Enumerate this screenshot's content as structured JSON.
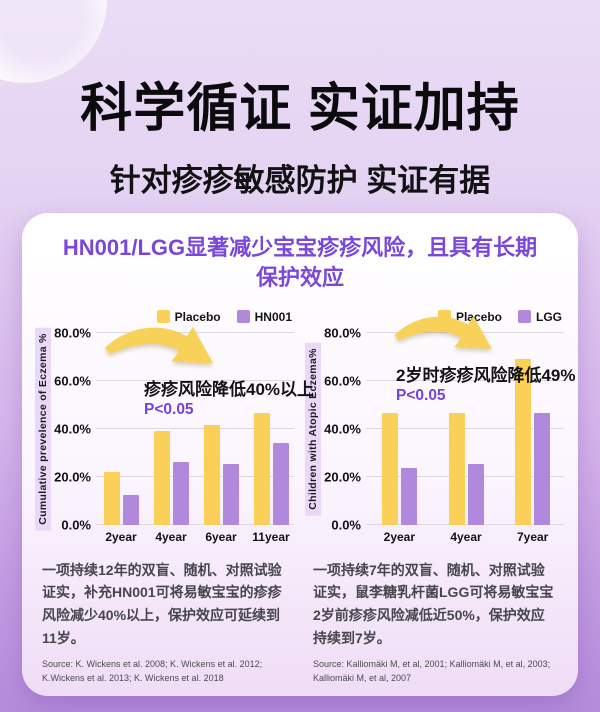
{
  "header": {
    "title": "科学循证 实证加持",
    "subtitle": "针对疹疹敏感防护 实证有据"
  },
  "card": {
    "title_line1": "HN001/LGG显著减少宝宝疹疹风险，且具有长期",
    "title_line2": "保护效应"
  },
  "chart_data": [
    {
      "type": "bar",
      "title": "",
      "ylabel": "Cumulative prevelence of Eczema %",
      "xlabel": "",
      "categories": [
        "2year",
        "4year",
        "6year",
        "11year"
      ],
      "series": [
        {
          "name": "Placebo",
          "color": "#FBD058",
          "values": [
            22,
            39,
            41.5,
            46.5
          ]
        },
        {
          "name": "HN001",
          "color": "#B089DC",
          "values": [
            12.5,
            26,
            25.5,
            34
          ]
        }
      ],
      "ylim": [
        0,
        80
      ],
      "yticks": [
        "0.0%",
        "20.0%",
        "40.0%",
        "60.0%",
        "80.0%"
      ],
      "grid": true,
      "legend_position": "top-right",
      "annotation": "疹疹风险降低40%以上",
      "pvalue": "P<0.05"
    },
    {
      "type": "bar",
      "title": "",
      "ylabel": "Children with Atopic Eczema%",
      "xlabel": "",
      "categories": [
        "2year",
        "4year",
        "7year"
      ],
      "series": [
        {
          "name": "Placebo",
          "color": "#FBD058",
          "values": [
            46.5,
            46.5,
            69
          ]
        },
        {
          "name": "LGG",
          "color": "#B089DC",
          "values": [
            23.5,
            25.5,
            46.5
          ]
        }
      ],
      "ylim": [
        0,
        80
      ],
      "yticks": [
        "0.0%",
        "20.0%",
        "40.0%",
        "60.0%",
        "80.0%"
      ],
      "grid": true,
      "legend_position": "top-right",
      "annotation": "2岁时疹疹风险降低49%",
      "pvalue": "P<0.05"
    }
  ],
  "panels": [
    {
      "description": "一项持续12年的双盲、随机、对照试验证实，补充HN001可将易敏宝宝的疹疹风险减少40%以上，保护效应可延续到11岁。",
      "source": "Source: K. Wickens et al. 2008; K. Wickens et al. 2012; K.Wickens et al. 2013; K. Wickens et al. 2018"
    },
    {
      "description": "一项持续7年的双盲、随机、对照试验证实，鼠李糖乳杆菌LGG可将易敏宝宝2岁前疹疹风险减低近50%，保护效应持续到7岁。",
      "source": "Source: Kalliomäki M, et al, 2001; Kalliomäki M, et al, 2003; Kalliomäki M, et al, 2007"
    }
  ],
  "colors": {
    "placebo_yellow": "#FBD058",
    "probiotic_purple": "#B089DC",
    "accent_purple": "#7A48D8",
    "label_highlight": "#EBD8F8",
    "arrow_yellow": "#F7D158"
  }
}
